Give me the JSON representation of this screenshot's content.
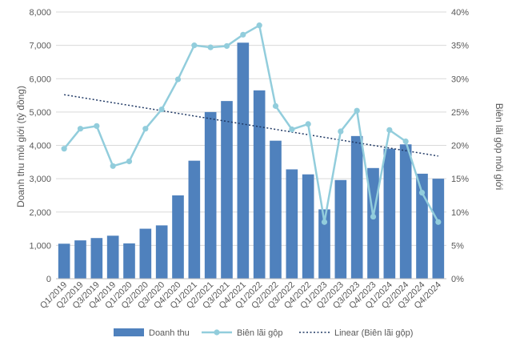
{
  "chart_data": {
    "type": "bar",
    "categories": [
      "Q1/2019",
      "Q2/2019",
      "Q3/2019",
      "Q4/2019",
      "Q1/2020",
      "Q2/2020",
      "Q3/2020",
      "Q4/2020",
      "Q1/2021",
      "Q2/2021",
      "Q3/2021",
      "Q4/2021",
      "Q1/2022",
      "Q2/2022",
      "Q3/2022",
      "Q4/2022",
      "Q1/2023",
      "Q2/2023",
      "Q3/2023",
      "Q4/2023",
      "Q1/2024",
      "Q2/2024",
      "Q3/2024",
      "Q4/2024"
    ],
    "series": [
      {
        "name": "Doanh thu",
        "type": "bar",
        "axis": "left",
        "color": "#4F81BD",
        "values": [
          1050,
          1150,
          1220,
          1290,
          1060,
          1500,
          1600,
          2500,
          3540,
          5000,
          5330,
          7080,
          5650,
          4140,
          3280,
          3130,
          2080,
          2960,
          4280,
          3320,
          3900,
          4030,
          3150,
          3000
        ]
      },
      {
        "name": "Biên lãi gộp",
        "type": "line",
        "axis": "right",
        "color": "#92CDDC",
        "values": [
          19.5,
          22.5,
          22.9,
          16.9,
          17.6,
          22.5,
          25.4,
          29.9,
          35.0,
          34.7,
          34.9,
          36.6,
          38.0,
          25.9,
          22.4,
          23.2,
          8.5,
          22.1,
          25.2,
          9.3,
          22.3,
          20.6,
          12.9,
          8.5
        ]
      },
      {
        "name": "Linear (Biên lãi gộp)",
        "type": "trendline",
        "axis": "right",
        "color": "#1F3864",
        "values": [
          27.6,
          27.2,
          26.8,
          26.4,
          26.0,
          25.6,
          25.2,
          24.8,
          24.4,
          24.0,
          23.6,
          23.2,
          22.8,
          22.4,
          22.0,
          21.6,
          21.2,
          20.8,
          20.4,
          20.0,
          19.6,
          19.2,
          18.8,
          18.4
        ]
      }
    ],
    "ylabel": "Doanh thu môi giới (tỷ đồng)",
    "y2label": "Biên lãi gộp môi giới",
    "ylim": [
      0,
      8000
    ],
    "y2lim": [
      0,
      40
    ],
    "yticks": [
      "0",
      "1,000",
      "2,000",
      "3,000",
      "4,000",
      "5,000",
      "6,000",
      "7,000",
      "8,000"
    ],
    "y2ticks": [
      "0%",
      "5%",
      "10%",
      "15%",
      "20%",
      "25%",
      "30%",
      "35%",
      "40%"
    ],
    "grid": true,
    "legend_position": "bottom"
  }
}
